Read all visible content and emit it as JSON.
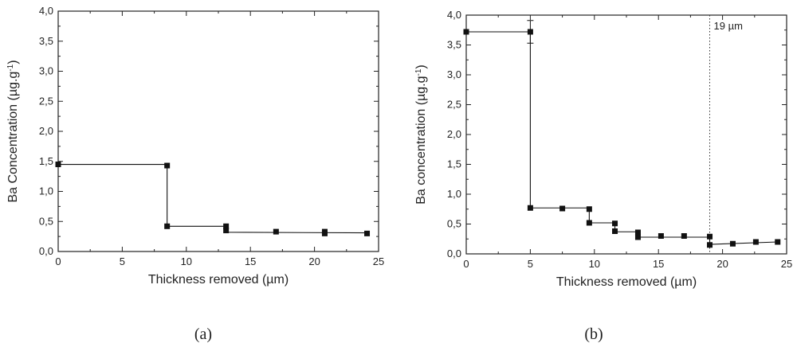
{
  "chart_data": [
    {
      "type": "line",
      "panel_label": "(a)",
      "xlabel": "Thickness removed (µm)",
      "ylabel_main": "Ba Concentration (µg.g",
      "ylabel_sup": "-1",
      "ylabel_end": ")",
      "xlim": [
        0,
        25
      ],
      "ylim": [
        0,
        4.0
      ],
      "x_ticks": [
        "0",
        "5",
        "10",
        "15",
        "20",
        "25"
      ],
      "y_ticks": [
        "0,0",
        "0,5",
        "1,0",
        "1,5",
        "2,0",
        "2,5",
        "3,0",
        "3,5",
        "4,0"
      ],
      "grid": false,
      "step_line": [
        [
          0,
          1.45
        ],
        [
          8.5,
          1.45
        ],
        [
          8.5,
          0.42
        ],
        [
          13.1,
          0.42
        ],
        [
          13.1,
          0.32
        ],
        [
          24.3,
          0.31
        ]
      ],
      "points": [
        {
          "x": 0,
          "y": 1.45
        },
        {
          "x": 8.5,
          "y": 1.43
        },
        {
          "x": 8.5,
          "y": 0.42
        },
        {
          "x": 13.1,
          "y": 0.42
        },
        {
          "x": 13.1,
          "y": 0.35
        },
        {
          "x": 17.0,
          "y": 0.33
        },
        {
          "x": 20.8,
          "y": 0.33
        },
        {
          "x": 20.8,
          "y": 0.3
        },
        {
          "x": 24.1,
          "y": 0.3
        }
      ]
    },
    {
      "type": "line",
      "panel_label": "(b)",
      "xlabel": "Thickness removed (µm)",
      "ylabel_main": "Ba concentration (µg.g",
      "ylabel_sup": "-1",
      "ylabel_end": ")",
      "xlim": [
        0,
        25
      ],
      "ylim": [
        0,
        4.0
      ],
      "x_ticks": [
        "0",
        "5",
        "10",
        "15",
        "20",
        "25"
      ],
      "y_ticks": [
        "0,0",
        "0,5",
        "1,0",
        "1,5",
        "2,0",
        "2,5",
        "3,0",
        "3,5",
        "4,0"
      ],
      "grid": false,
      "annotation": "19 µm",
      "vline_x": 19,
      "error_bar": {
        "x": 5,
        "low": 3.53,
        "high": 3.91
      },
      "step_line": [
        [
          0,
          3.72
        ],
        [
          5,
          3.72
        ],
        [
          5,
          0.77
        ],
        [
          9.6,
          0.77
        ],
        [
          9.6,
          0.52
        ],
        [
          11.6,
          0.52
        ],
        [
          11.6,
          0.37
        ],
        [
          13.4,
          0.37
        ],
        [
          13.4,
          0.28
        ],
        [
          19,
          0.28
        ],
        [
          19,
          0.16
        ],
        [
          24.3,
          0.2
        ]
      ],
      "points": [
        {
          "x": 0,
          "y": 3.72
        },
        {
          "x": 5,
          "y": 3.72
        },
        {
          "x": 5,
          "y": 0.77
        },
        {
          "x": 7.5,
          "y": 0.76
        },
        {
          "x": 9.6,
          "y": 0.75
        },
        {
          "x": 9.6,
          "y": 0.52
        },
        {
          "x": 11.6,
          "y": 0.51
        },
        {
          "x": 11.6,
          "y": 0.38
        },
        {
          "x": 13.4,
          "y": 0.36
        },
        {
          "x": 13.4,
          "y": 0.28
        },
        {
          "x": 15.2,
          "y": 0.3
        },
        {
          "x": 17.0,
          "y": 0.3
        },
        {
          "x": 19.0,
          "y": 0.29
        },
        {
          "x": 19.0,
          "y": 0.15
        },
        {
          "x": 20.8,
          "y": 0.17
        },
        {
          "x": 22.6,
          "y": 0.2
        },
        {
          "x": 24.3,
          "y": 0.2
        }
      ]
    }
  ]
}
